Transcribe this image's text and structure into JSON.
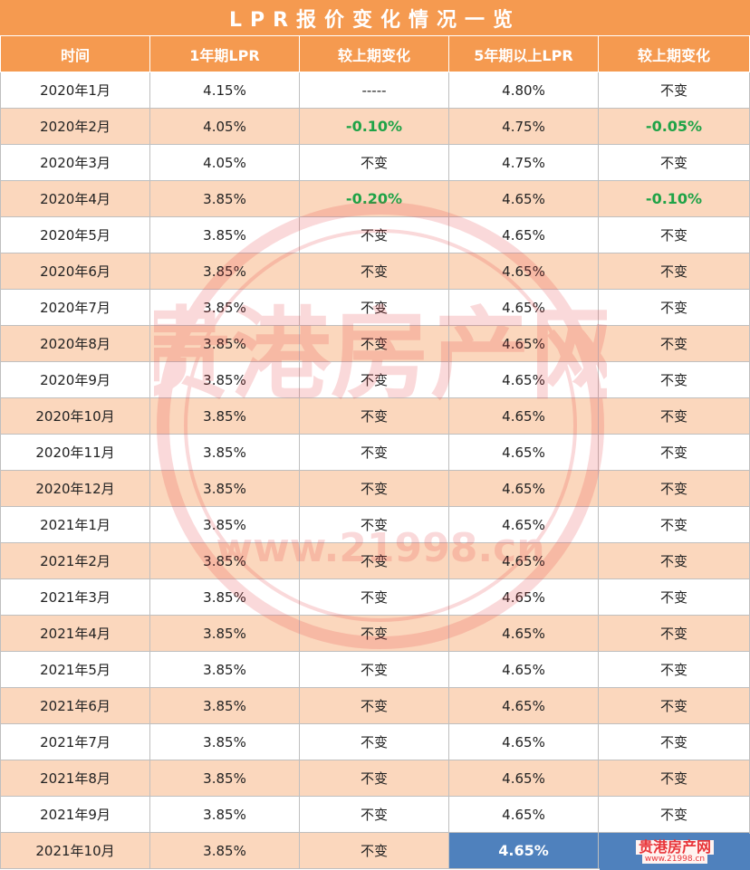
{
  "title": "LPR报价变化情况一览",
  "headers": [
    "时间",
    "1年期LPR",
    "较上期变化",
    "5年期以上LPR",
    "较上期变化"
  ],
  "rows": [
    {
      "date": "2020年1月",
      "lpr1": "4.15%",
      "chg1": "-----",
      "lpr5": "4.80%",
      "chg5": "不变"
    },
    {
      "date": "2020年2月",
      "lpr1": "4.05%",
      "chg1": "-0.10%",
      "lpr5": "4.75%",
      "chg5": "-0.05%"
    },
    {
      "date": "2020年3月",
      "lpr1": "4.05%",
      "chg1": "不变",
      "lpr5": "4.75%",
      "chg5": "不变"
    },
    {
      "date": "2020年4月",
      "lpr1": "3.85%",
      "chg1": "-0.20%",
      "lpr5": "4.65%",
      "chg5": "-0.10%"
    },
    {
      "date": "2020年5月",
      "lpr1": "3.85%",
      "chg1": "不变",
      "lpr5": "4.65%",
      "chg5": "不变"
    },
    {
      "date": "2020年6月",
      "lpr1": "3.85%",
      "chg1": "不变",
      "lpr5": "4.65%",
      "chg5": "不变"
    },
    {
      "date": "2020年7月",
      "lpr1": "3.85%",
      "chg1": "不变",
      "lpr5": "4.65%",
      "chg5": "不变"
    },
    {
      "date": "2020年8月",
      "lpr1": "3.85%",
      "chg1": "不变",
      "lpr5": "4.65%",
      "chg5": "不变"
    },
    {
      "date": "2020年9月",
      "lpr1": "3.85%",
      "chg1": "不变",
      "lpr5": "4.65%",
      "chg5": "不变"
    },
    {
      "date": "2020年10月",
      "lpr1": "3.85%",
      "chg1": "不变",
      "lpr5": "4.65%",
      "chg5": "不变"
    },
    {
      "date": "2020年11月",
      "lpr1": "3.85%",
      "chg1": "不变",
      "lpr5": "4.65%",
      "chg5": "不变"
    },
    {
      "date": "2020年12月",
      "lpr1": "3.85%",
      "chg1": "不变",
      "lpr5": "4.65%",
      "chg5": "不变"
    },
    {
      "date": "2021年1月",
      "lpr1": "3.85%",
      "chg1": "不变",
      "lpr5": "4.65%",
      "chg5": "不变"
    },
    {
      "date": "2021年2月",
      "lpr1": "3.85%",
      "chg1": "不变",
      "lpr5": "4.65%",
      "chg5": "不变"
    },
    {
      "date": "2021年3月",
      "lpr1": "3.85%",
      "chg1": "不变",
      "lpr5": "4.65%",
      "chg5": "不变"
    },
    {
      "date": "2021年4月",
      "lpr1": "3.85%",
      "chg1": "不变",
      "lpr5": "4.65%",
      "chg5": "不变"
    },
    {
      "date": "2021年5月",
      "lpr1": "3.85%",
      "chg1": "不变",
      "lpr5": "4.65%",
      "chg5": "不变"
    },
    {
      "date": "2021年6月",
      "lpr1": "3.85%",
      "chg1": "不变",
      "lpr5": "4.65%",
      "chg5": "不变"
    },
    {
      "date": "2021年7月",
      "lpr1": "3.85%",
      "chg1": "不变",
      "lpr5": "4.65%",
      "chg5": "不变"
    },
    {
      "date": "2021年8月",
      "lpr1": "3.85%",
      "chg1": "不变",
      "lpr5": "4.65%",
      "chg5": "不变"
    },
    {
      "date": "2021年9月",
      "lpr1": "3.85%",
      "chg1": "不变",
      "lpr5": "4.65%",
      "chg5": "不变"
    },
    {
      "date": "2021年10月",
      "lpr1": "3.85%",
      "chg1": "不变",
      "lpr5": "4.65%",
      "chg5": ""
    }
  ],
  "watermark": {
    "text": "贵港房产网",
    "url": "www.21998.cn"
  },
  "corner_logo": {
    "text": "贵港房产网",
    "url": "www.21998.cn"
  },
  "colors": {
    "header": "#f59a50",
    "stripe": "#fbd7bd",
    "negative": "#1fa347",
    "highlight": "#4f81bd",
    "logo": "#e8353a"
  }
}
